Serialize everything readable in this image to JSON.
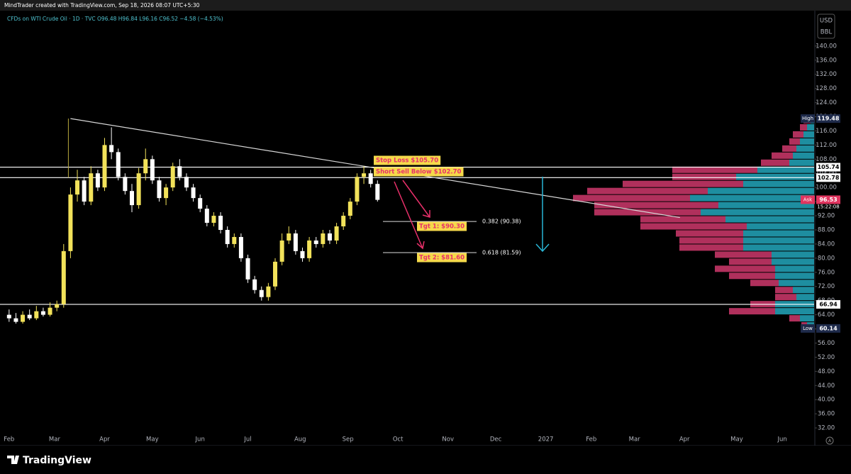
{
  "header": {
    "title": "MindTrader created with TradingView.com, Sep 18, 2026 08:07 UTC+5:30",
    "brand": "TradingView"
  },
  "chart_data": {
    "type": "candlestick",
    "title": "CFDs on WTI Crude Oil · 1D · TVC  O96.48  H96.84  L96.16  C96.52  −4.58 (−4.53%)",
    "currency": "USD",
    "unit": "BBL",
    "x": [
      0,
      3,
      6,
      9,
      12,
      15,
      18,
      21,
      24,
      27,
      30,
      33,
      36,
      39,
      42,
      45,
      48,
      51,
      54,
      57,
      60,
      63,
      66,
      69,
      72,
      75,
      78,
      81,
      84,
      87,
      90,
      93,
      96,
      99,
      102,
      105,
      108,
      111,
      114,
      117,
      120,
      123,
      126,
      129,
      132,
      135,
      138,
      141,
      144,
      147,
      150,
      153,
      156,
      159,
      162
    ],
    "open": [
      64,
      63,
      62,
      64,
      63,
      65,
      64,
      66,
      67,
      82,
      98,
      102,
      96,
      104,
      100,
      112,
      110,
      103,
      99,
      95,
      104,
      108,
      102,
      97,
      100,
      106,
      103,
      100,
      97,
      94,
      90,
      92,
      88,
      84,
      86,
      80,
      74,
      71,
      69,
      72,
      79,
      85,
      87,
      82,
      80,
      85,
      84,
      87,
      85,
      89,
      92,
      96,
      103,
      104,
      101
    ],
    "high": [
      65.5,
      64.5,
      65,
      65.5,
      66.5,
      66,
      67.5,
      68,
      84,
      100,
      105,
      103,
      106,
      105,
      114,
      117,
      111,
      104,
      101,
      105.5,
      111,
      109,
      103,
      101,
      107,
      108,
      104,
      101,
      98,
      95,
      93,
      93,
      89,
      87,
      87,
      81,
      75,
      72,
      73,
      80,
      87,
      89,
      88,
      83,
      86,
      86,
      88,
      88,
      90,
      93,
      97,
      104,
      106,
      105,
      102
    ],
    "low": [
      62,
      61.5,
      61.5,
      62.5,
      62.5,
      63.5,
      63.5,
      65,
      66,
      80,
      96,
      95,
      95,
      99,
      99,
      108,
      102,
      98,
      93,
      94,
      102,
      101,
      96,
      95,
      99,
      102,
      99,
      96,
      93,
      89,
      89,
      87,
      83,
      83,
      79,
      73,
      70,
      68,
      68,
      71,
      78,
      84,
      81,
      79,
      79,
      83,
      83,
      84,
      84,
      88,
      91,
      95,
      101,
      100,
      96
    ],
    "close": [
      63,
      62,
      64,
      63,
      65,
      64,
      66,
      67,
      82,
      98,
      102,
      96,
      104,
      100,
      112,
      110,
      103,
      99,
      95,
      104,
      108,
      102,
      97,
      100,
      106,
      103,
      100,
      97,
      94,
      90,
      92,
      88,
      84,
      86,
      80,
      74,
      71,
      69,
      72,
      79,
      85,
      87,
      82,
      80,
      85,
      84,
      87,
      85,
      89,
      92,
      96,
      103,
      104,
      101,
      96.5
    ],
    "up_color": "#f2e25a",
    "down_color": "#ffffff",
    "xlim": [
      -4,
      354
    ],
    "xticks": [
      {
        "value": 0,
        "label": "Feb"
      },
      {
        "value": 20,
        "label": "Mar"
      },
      {
        "value": 42,
        "label": "Apr"
      },
      {
        "value": 63,
        "label": "May"
      },
      {
        "value": 84,
        "label": "Jun"
      },
      {
        "value": 105,
        "label": "Jul"
      },
      {
        "value": 128,
        "label": "Aug"
      },
      {
        "value": 149,
        "label": "Sep"
      },
      {
        "value": 171,
        "label": "Oct"
      },
      {
        "value": 193,
        "label": "Nov"
      },
      {
        "value": 214,
        "label": "Dec"
      },
      {
        "value": 236,
        "label": "2027"
      },
      {
        "value": 256,
        "label": "Feb"
      },
      {
        "value": 275,
        "label": "Mar"
      },
      {
        "value": 297,
        "label": "Apr"
      },
      {
        "value": 320,
        "label": "May"
      },
      {
        "value": 340,
        "label": "Jun"
      }
    ],
    "ylim": [
      27,
      150
    ],
    "yticks": [
      {
        "value": 32,
        "label": "32.00"
      },
      {
        "value": 36,
        "label": "36.00"
      },
      {
        "value": 40,
        "label": "40.00"
      },
      {
        "value": 44,
        "label": "44.00"
      },
      {
        "value": 48,
        "label": "48.00"
      },
      {
        "value": 52,
        "label": "52.00"
      },
      {
        "value": 56,
        "label": "56.00"
      },
      {
        "value": 60,
        "label": "60.00"
      },
      {
        "value": 64,
        "label": "64.00"
      },
      {
        "value": 68,
        "label": "68.00"
      },
      {
        "value": 72,
        "label": "72.00"
      },
      {
        "value": 76,
        "label": "76.00"
      },
      {
        "value": 80,
        "label": "80.00"
      },
      {
        "value": 84,
        "label": "84.00"
      },
      {
        "value": 88,
        "label": "88.00"
      },
      {
        "value": 92,
        "label": "92.00"
      },
      {
        "value": 96,
        "label": "96.00"
      },
      {
        "value": 100,
        "label": "100.00"
      },
      {
        "value": 104,
        "label": "104.00"
      },
      {
        "value": 108,
        "label": "108.00"
      },
      {
        "value": 112,
        "label": "112.00"
      },
      {
        "value": 116,
        "label": "116.00"
      },
      {
        "value": 120,
        "label": "120.00"
      },
      {
        "value": 124,
        "label": "124.00"
      },
      {
        "value": 128,
        "label": "128.00"
      },
      {
        "value": 132,
        "label": "132.00"
      },
      {
        "value": 136,
        "label": "136.00"
      },
      {
        "value": 140,
        "label": "140.00"
      }
    ],
    "horizontal_lines": [
      105.74,
      102.78,
      66.94
    ],
    "trendline": {
      "x": [
        27,
        295
      ],
      "y": [
        119.48,
        91.5
      ]
    },
    "price_tags": [
      {
        "label": "High",
        "value": 119.48,
        "color": "#1e2a4a"
      },
      {
        "value": 105.74,
        "color": "#ffffff"
      },
      {
        "value": 102.78,
        "color": "#ffffff"
      },
      {
        "label": "Ask",
        "value": 96.53,
        "color": "#e0355f"
      },
      {
        "value": 66.94,
        "color": "#ffffff"
      },
      {
        "label": "Low",
        "value": 60.14,
        "color": "#1e2a4a"
      }
    ],
    "countdown": "15:22:08",
    "fib_levels": [
      {
        "label": "0.382 (90.38)",
        "value": 90.38
      },
      {
        "label": "0.618 (81.59)",
        "value": 81.59
      }
    ],
    "annotations": [
      "Stop Loss $105.70",
      "Short Sell Below $102.70",
      "Tgt 1: $90.30",
      "Tgt 2: $81.60"
    ],
    "volume_profile": {
      "price": [
        118,
        116,
        114,
        112,
        110,
        108,
        106,
        104,
        102,
        100,
        98,
        96,
        94,
        92,
        90,
        88,
        86,
        84,
        82,
        80,
        78,
        76,
        74,
        72,
        70,
        68,
        66,
        64,
        62,
        60
      ],
      "up": [
        5,
        10,
        15,
        20,
        25,
        30,
        35,
        80,
        110,
        100,
        150,
        175,
        135,
        160,
        125,
        95,
        100,
        100,
        100,
        60,
        60,
        55,
        55,
        50,
        30,
        25,
        55,
        55,
        20,
        10
      ],
      "down": [
        10,
        10,
        15,
        15,
        20,
        30,
        40,
        120,
        90,
        170,
        170,
        165,
        175,
        150,
        120,
        150,
        95,
        90,
        90,
        80,
        60,
        85,
        65,
        40,
        25,
        30,
        35,
        65,
        15,
        8
      ],
      "up_color": "#1e8ea0",
      "down_color": "#b0305c"
    }
  }
}
